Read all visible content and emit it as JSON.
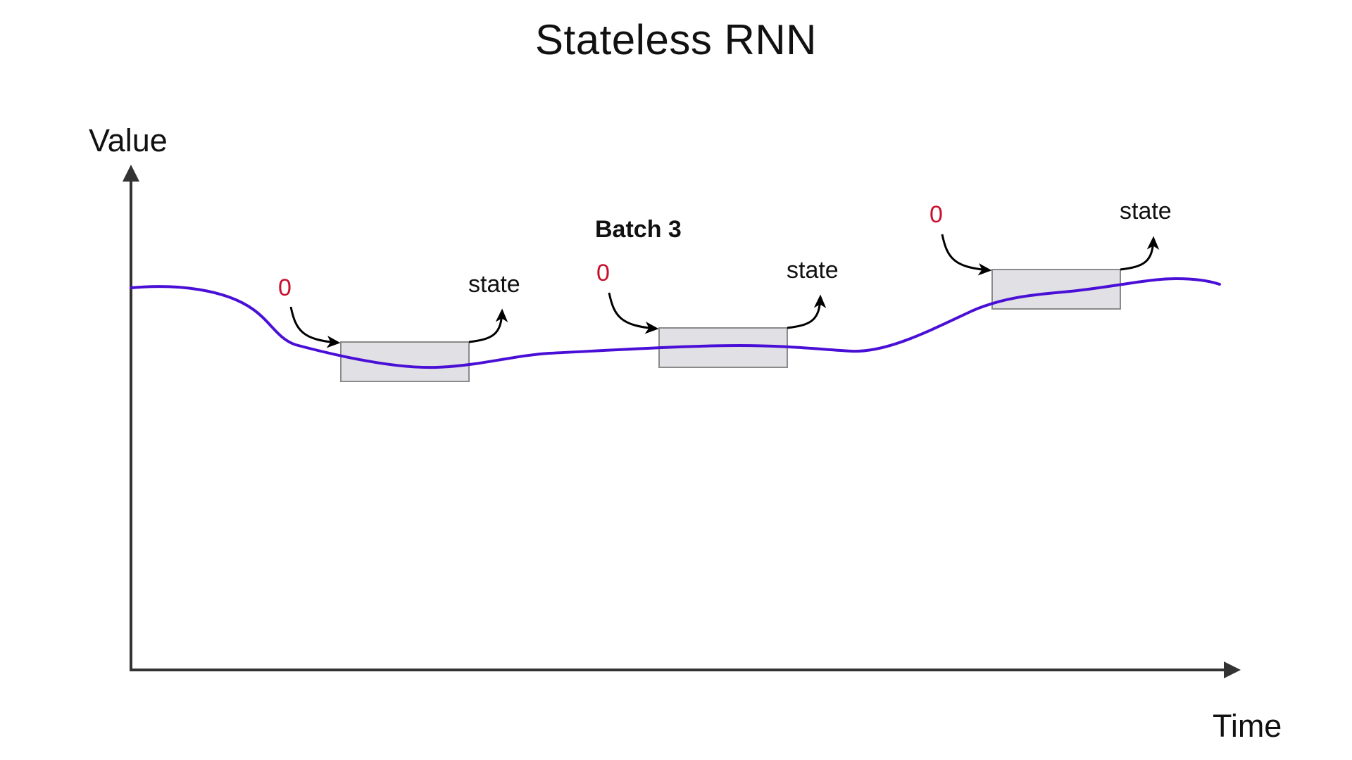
{
  "title": "Stateless RNN",
  "axes": {
    "y_label": "Value",
    "x_label": "Time"
  },
  "colors": {
    "series_line": "#4a0fd6",
    "zero_text": "#c8102e",
    "window_fill": "#e1e0e4",
    "window_stroke": "#8a8a8a",
    "axis": "#333333"
  },
  "windows": [
    {
      "input_label": "0",
      "output_label": "state",
      "batch_label": ""
    },
    {
      "input_label": "0",
      "output_label": "state",
      "batch_label": "Batch 3"
    },
    {
      "input_label": "0",
      "output_label": "state",
      "batch_label": ""
    }
  ]
}
